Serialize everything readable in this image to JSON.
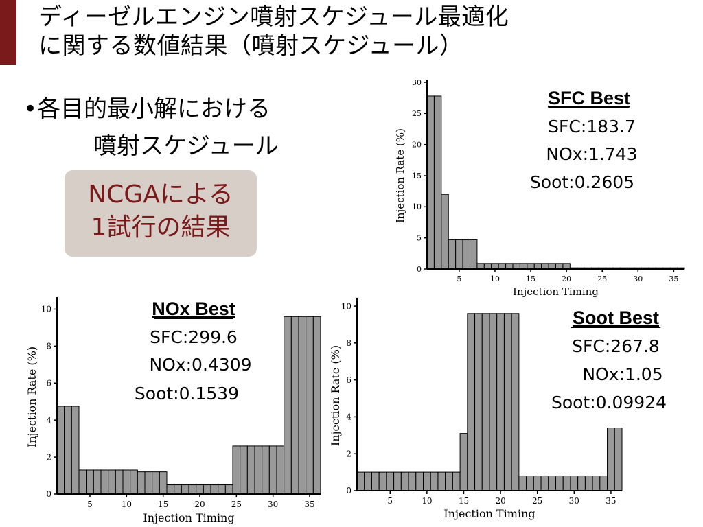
{
  "slide": {
    "title_line1": "ディーゼルエンジン噴射スケジュール最適化",
    "title_line2": "に関する数値結果（噴射スケジュール）",
    "bullet_line1": "•各目的最小解における",
    "bullet_line2": "噴射スケジュール",
    "callout_line1": "NCGAによる",
    "callout_line2": "1試行の結果",
    "colors": {
      "accent": "#7a1a1a",
      "callout_bg": "#d8cec8",
      "bar_fill": "#999999"
    }
  },
  "chart_data": [
    {
      "id": "sfc",
      "type": "bar",
      "xlabel": "Injection Timing",
      "ylabel": "Injection Rate (%)",
      "ylim": [
        0,
        30
      ],
      "yticks": [
        0,
        5,
        10,
        15,
        20,
        25,
        30
      ],
      "xticks": [
        5,
        10,
        15,
        20,
        25,
        30,
        35
      ],
      "x": [
        1,
        2,
        3,
        4,
        5,
        6,
        7,
        8,
        9,
        10,
        11,
        12,
        13,
        14,
        15,
        16,
        17,
        18,
        19,
        20,
        21,
        22,
        23,
        24,
        25,
        26,
        27,
        28,
        29,
        30,
        31,
        32,
        33,
        34,
        35,
        36
      ],
      "values": [
        27.8,
        27.8,
        12.0,
        4.7,
        4.7,
        4.7,
        4.7,
        0.9,
        0.9,
        0.9,
        0.9,
        0.9,
        0.9,
        0.9,
        0.9,
        0.9,
        0.9,
        0.9,
        0.9,
        0.9,
        0.2,
        0.2,
        0.2,
        0.2,
        0.2,
        0.2,
        0.2,
        0.2,
        0.2,
        0.2,
        0.2,
        0.2,
        0.2,
        0.2,
        0.2,
        0.2
      ],
      "annotation": {
        "title": "SFC Best",
        "lines": [
          "SFC:183.7",
          "NOx:1.743",
          "Soot:0.2605"
        ]
      }
    },
    {
      "id": "nox",
      "type": "bar",
      "xlabel": "Injection Timing",
      "ylabel": "Injection Rate (%)",
      "ylim": [
        0,
        10.5
      ],
      "yticks": [
        0,
        2,
        4,
        6,
        8,
        10
      ],
      "xticks": [
        5,
        10,
        15,
        20,
        25,
        30,
        35
      ],
      "x": [
        1,
        2,
        3,
        4,
        5,
        6,
        7,
        8,
        9,
        10,
        11,
        12,
        13,
        14,
        15,
        16,
        17,
        18,
        19,
        20,
        21,
        22,
        23,
        24,
        25,
        26,
        27,
        28,
        29,
        30,
        31,
        32,
        33,
        34,
        35,
        36
      ],
      "values": [
        4.75,
        4.75,
        4.75,
        1.3,
        1.3,
        1.3,
        1.3,
        1.3,
        1.3,
        1.3,
        1.3,
        1.2,
        1.2,
        1.2,
        1.2,
        0.5,
        0.5,
        0.5,
        0.5,
        0.5,
        0.5,
        0.5,
        0.5,
        0.5,
        2.6,
        2.6,
        2.6,
        2.6,
        2.6,
        2.6,
        2.6,
        9.6,
        9.6,
        9.6,
        9.6,
        9.6
      ],
      "annotation": {
        "title": "NOx Best",
        "lines": [
          "SFC:299.6",
          "NOx:0.4309",
          "Soot:0.1539"
        ]
      }
    },
    {
      "id": "soot",
      "type": "bar",
      "xlabel": "Injection Timing",
      "ylabel": "Injection Rate (%)",
      "ylim": [
        0,
        10.3
      ],
      "yticks": [
        0,
        2,
        4,
        6,
        8,
        10
      ],
      "xticks": [
        5,
        10,
        15,
        20,
        25,
        30,
        35
      ],
      "x": [
        1,
        2,
        3,
        4,
        5,
        6,
        7,
        8,
        9,
        10,
        11,
        12,
        13,
        14,
        15,
        16,
        17,
        18,
        19,
        20,
        21,
        22,
        23,
        24,
        25,
        26,
        27,
        28,
        29,
        30,
        31,
        32,
        33,
        34,
        35,
        36
      ],
      "values": [
        1.0,
        1.0,
        1.0,
        1.0,
        1.0,
        1.0,
        1.0,
        1.0,
        1.0,
        1.0,
        1.0,
        1.0,
        1.0,
        1.0,
        3.1,
        9.6,
        9.6,
        9.6,
        9.6,
        9.6,
        9.6,
        9.6,
        0.8,
        0.8,
        0.8,
        0.8,
        0.8,
        0.8,
        0.8,
        0.8,
        0.8,
        0.8,
        0.8,
        0.8,
        3.4,
        3.4
      ],
      "annotation": {
        "title": "Soot Best",
        "lines": [
          "SFC:267.8",
          "NOx:1.05",
          "Soot:0.09924"
        ]
      }
    }
  ]
}
